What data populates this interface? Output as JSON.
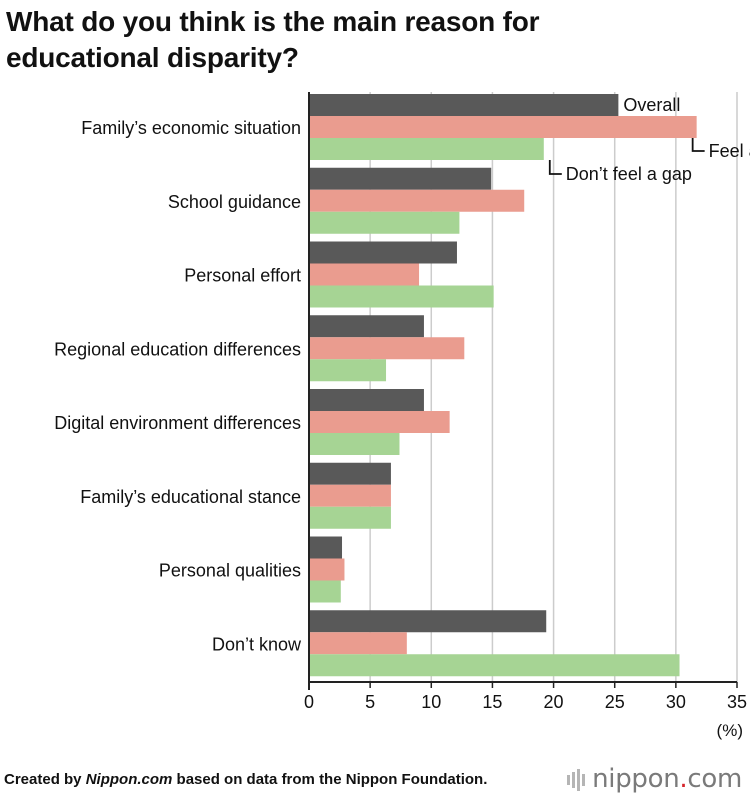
{
  "header": {
    "title_line1": "What do you think is the main reason for",
    "title_line2": "educational disparity?"
  },
  "footer": {
    "credit_prefix": "Created by ",
    "credit_source": "Nippon.com",
    "credit_suffix": " based on data from the Nippon Foundation.",
    "brand_name": "nippon",
    "brand_dot": ".",
    "brand_tld": "com"
  },
  "colors": {
    "overall": "#595959",
    "feel_gap": "#ea9c8f",
    "dont_feel_gap": "#a6d494",
    "grid": "#cccccc",
    "axis": "#222222"
  },
  "chart_data": {
    "type": "bar",
    "orientation": "horizontal",
    "categories": [
      "Family’s economic situation",
      "School guidance",
      "Personal effort",
      "Regional education differences",
      "Digital environment differences",
      "Family’s educational stance",
      "Personal qualities",
      "Don’t know"
    ],
    "series": [
      {
        "name": "Overall",
        "color": "#595959",
        "values": [
          25.3,
          14.9,
          12.1,
          9.4,
          9.4,
          6.7,
          2.7,
          19.4
        ]
      },
      {
        "name": "Feel a gap",
        "color": "#ea9c8f",
        "values": [
          31.7,
          17.6,
          9.0,
          12.7,
          11.5,
          6.7,
          2.9,
          8.0
        ]
      },
      {
        "name": "Don’t feel a gap",
        "color": "#a6d494",
        "values": [
          19.2,
          12.3,
          15.1,
          6.3,
          7.4,
          6.7,
          2.6,
          30.3
        ]
      }
    ],
    "xlim": [
      0,
      35
    ],
    "xticks": [
      0,
      5,
      10,
      15,
      20,
      25,
      30,
      35
    ],
    "xlabel": "(%)",
    "grid": true,
    "legend_placement": "annotated next to top bars"
  }
}
